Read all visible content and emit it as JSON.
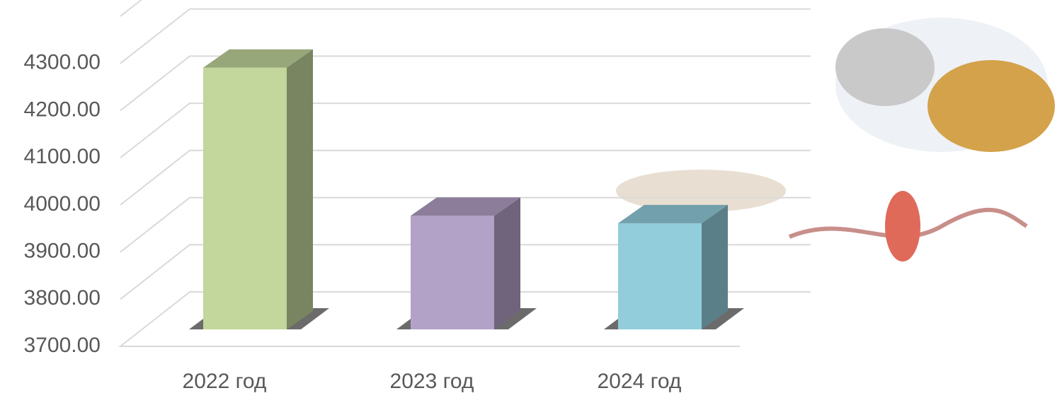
{
  "chart_data": {
    "type": "bar3d",
    "categories": [
      "2022 год",
      "2023 год",
      "2024 год"
    ],
    "values": [
      4255,
      3941,
      3925
    ],
    "colors": [
      "#c3d69b",
      "#b3a2c7",
      "#92cddc"
    ],
    "ylim": [
      3700,
      4400
    ],
    "yticks": [
      {
        "value": 3700,
        "label": "3700.00"
      },
      {
        "value": 3800,
        "label": "3800.00"
      },
      {
        "value": 3900,
        "label": "3900.00"
      },
      {
        "value": 4000,
        "label": "4000.00"
      },
      {
        "value": 4100,
        "label": "4100.00"
      },
      {
        "value": 4200,
        "label": "4200.00"
      },
      {
        "value": 4300,
        "label": "4300.00"
      }
    ],
    "grid": true
  }
}
